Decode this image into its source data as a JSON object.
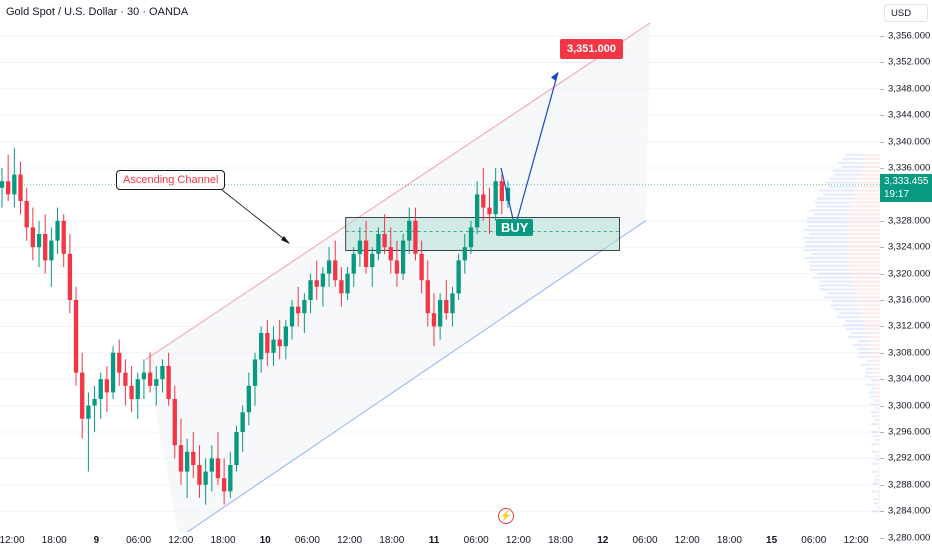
{
  "header": {
    "symbol_title": "Gold Spot / U.S. Dollar · 30 · OANDA"
  },
  "price_axis": {
    "currency": "USD",
    "current_price": "3,333.455",
    "countdown": "19:17",
    "ticks": [
      "3,356.000",
      "3,352.000",
      "3,348.000",
      "3,344.000",
      "3,340.000",
      "3,336.000",
      "3,328.000",
      "3,324.000",
      "3,320.000",
      "3,316.000",
      "3,312.000",
      "3,308.000",
      "3,304.000",
      "3,300.000",
      "3,296.000",
      "3,292.000",
      "3,288.000",
      "3,284.000",
      "3,280.000"
    ]
  },
  "time_axis": {
    "ticks": [
      {
        "label": "12:00",
        "bold": false
      },
      {
        "label": "18:00",
        "bold": false
      },
      {
        "label": "9",
        "bold": true
      },
      {
        "label": "06:00",
        "bold": false
      },
      {
        "label": "12:00",
        "bold": false
      },
      {
        "label": "18:00",
        "bold": false
      },
      {
        "label": "10",
        "bold": true
      },
      {
        "label": "06:00",
        "bold": false
      },
      {
        "label": "12:00",
        "bold": false
      },
      {
        "label": "18:00",
        "bold": false
      },
      {
        "label": "11",
        "bold": true
      },
      {
        "label": "06:00",
        "bold": false
      },
      {
        "label": "12:00",
        "bold": false
      },
      {
        "label": "18:00",
        "bold": false
      },
      {
        "label": "12",
        "bold": true
      },
      {
        "label": "06:00",
        "bold": false
      },
      {
        "label": "12:00",
        "bold": false
      },
      {
        "label": "18:00",
        "bold": false
      },
      {
        "label": "15",
        "bold": true
      },
      {
        "label": "06:00",
        "bold": false
      },
      {
        "label": "12:00",
        "bold": false
      }
    ]
  },
  "annotations": {
    "channel_label": "Ascending Channel",
    "target_label": "3,351.000",
    "buy_label": "BUY"
  },
  "colors": {
    "up": "#089981",
    "down": "#f23645",
    "upper_channel": "#f7a1a8",
    "lower_channel": "#8fb4f0",
    "zone": "#b2dfd6",
    "arrow": "#1848cc"
  },
  "chart_data": {
    "type": "candlestick",
    "symbol": "XAUUSD",
    "timeframe": "30",
    "ylim": [
      3280,
      3358
    ],
    "zone": {
      "low": 3323.5,
      "high": 3328.5
    },
    "target": 3351.0,
    "channel": {
      "upper": [
        {
          "bar": 60,
          "price": 3307
        },
        {
          "bar": 272,
          "price": 3358
        }
      ],
      "lower": [
        {
          "bar": 74,
          "price": 3280
        },
        {
          "bar": 270,
          "price": 3328
        }
      ]
    },
    "projection": [
      {
        "bar": 221,
        "price": 3330
      },
      {
        "bar": 228,
        "price": 3325
      },
      {
        "bar": 247,
        "price": 3350
      }
    ],
    "candles": [
      [
        3333,
        3336,
        3330,
        3334
      ],
      [
        3334,
        3338,
        3331,
        3332
      ],
      [
        3332,
        3339,
        3330,
        3335
      ],
      [
        3335,
        3337,
        3329,
        3331
      ],
      [
        3331,
        3333,
        3325,
        3327
      ],
      [
        3327,
        3330,
        3322,
        3324
      ],
      [
        3324,
        3328,
        3321,
        3326
      ],
      [
        3326,
        3329,
        3320,
        3322
      ],
      [
        3322,
        3327,
        3318,
        3325
      ],
      [
        3325,
        3330,
        3323,
        3328
      ],
      [
        3328,
        3329,
        3321,
        3323
      ],
      [
        3323,
        3326,
        3314,
        3316
      ],
      [
        3316,
        3318,
        3303,
        3305
      ],
      [
        3305,
        3308,
        3295,
        3298
      ],
      [
        3298,
        3302,
        3290,
        3300
      ],
      [
        3300,
        3303,
        3296,
        3301
      ],
      [
        3301,
        3305,
        3298,
        3304
      ],
      [
        3304,
        3306,
        3299,
        3302
      ],
      [
        3302,
        3309,
        3301,
        3308
      ],
      [
        3308,
        3310,
        3303,
        3305
      ],
      [
        3305,
        3307,
        3300,
        3303
      ],
      [
        3303,
        3306,
        3299,
        3301
      ],
      [
        3301,
        3305,
        3298,
        3304
      ],
      [
        3304,
        3307,
        3301,
        3305
      ],
      [
        3305,
        3308,
        3302,
        3303
      ],
      [
        3303,
        3306,
        3300,
        3304
      ],
      [
        3304,
        3307,
        3302,
        3306
      ],
      [
        3306,
        3308,
        3300,
        3301
      ],
      [
        3301,
        3303,
        3292,
        3294
      ],
      [
        3294,
        3298,
        3288,
        3290
      ],
      [
        3290,
        3295,
        3286,
        3293
      ],
      [
        3293,
        3296,
        3289,
        3291
      ],
      [
        3291,
        3294,
        3286,
        3288
      ],
      [
        3288,
        3292,
        3285,
        3290
      ],
      [
        3290,
        3294,
        3287,
        3292
      ],
      [
        3292,
        3296,
        3288,
        3289
      ],
      [
        3289,
        3292,
        3285,
        3287
      ],
      [
        3287,
        3293,
        3286,
        3291
      ],
      [
        3291,
        3297,
        3290,
        3296
      ],
      [
        3296,
        3300,
        3293,
        3299
      ],
      [
        3299,
        3305,
        3297,
        3303
      ],
      [
        3303,
        3308,
        3300,
        3307
      ],
      [
        3307,
        3312,
        3305,
        3311
      ],
      [
        3311,
        3313,
        3306,
        3308
      ],
      [
        3308,
        3312,
        3306,
        3310
      ],
      [
        3310,
        3313,
        3307,
        3309
      ],
      [
        3309,
        3313,
        3307,
        3312
      ],
      [
        3312,
        3316,
        3310,
        3315
      ],
      [
        3315,
        3318,
        3312,
        3314
      ],
      [
        3314,
        3317,
        3311,
        3316
      ],
      [
        3316,
        3320,
        3314,
        3319
      ],
      [
        3319,
        3322,
        3316,
        3318
      ],
      [
        3318,
        3321,
        3315,
        3320
      ],
      [
        3320,
        3324,
        3318,
        3322
      ],
      [
        3322,
        3325,
        3318,
        3319
      ],
      [
        3319,
        3321,
        3315,
        3317
      ],
      [
        3317,
        3321,
        3316,
        3320
      ],
      [
        3320,
        3324,
        3318,
        3323
      ],
      [
        3323,
        3327,
        3321,
        3325
      ],
      [
        3325,
        3328,
        3320,
        3321
      ],
      [
        3321,
        3324,
        3318,
        3323
      ],
      [
        3323,
        3327,
        3322,
        3326
      ],
      [
        3326,
        3329,
        3323,
        3324
      ],
      [
        3324,
        3327,
        3320,
        3322
      ],
      [
        3322,
        3325,
        3318,
        3320
      ],
      [
        3320,
        3326,
        3319,
        3325
      ],
      [
        3325,
        3330,
        3323,
        3328
      ],
      [
        3328,
        3330,
        3322,
        3323
      ],
      [
        3323,
        3325,
        3317,
        3319
      ],
      [
        3319,
        3322,
        3312,
        3314
      ],
      [
        3314,
        3317,
        3309,
        3312
      ],
      [
        3312,
        3317,
        3310,
        3316
      ],
      [
        3316,
        3319,
        3313,
        3314
      ],
      [
        3314,
        3318,
        3312,
        3317
      ],
      [
        3317,
        3323,
        3316,
        3322
      ],
      [
        3322,
        3326,
        3320,
        3324
      ],
      [
        3324,
        3328,
        3323,
        3327
      ],
      [
        3327,
        3334,
        3326,
        3332
      ],
      [
        3332,
        3336,
        3328,
        3330
      ],
      [
        3330,
        3333,
        3326,
        3329
      ],
      [
        3329,
        3336,
        3328,
        3334
      ],
      [
        3334,
        3335,
        3329,
        3331
      ],
      [
        3331,
        3334,
        3330,
        3333
      ]
    ]
  }
}
